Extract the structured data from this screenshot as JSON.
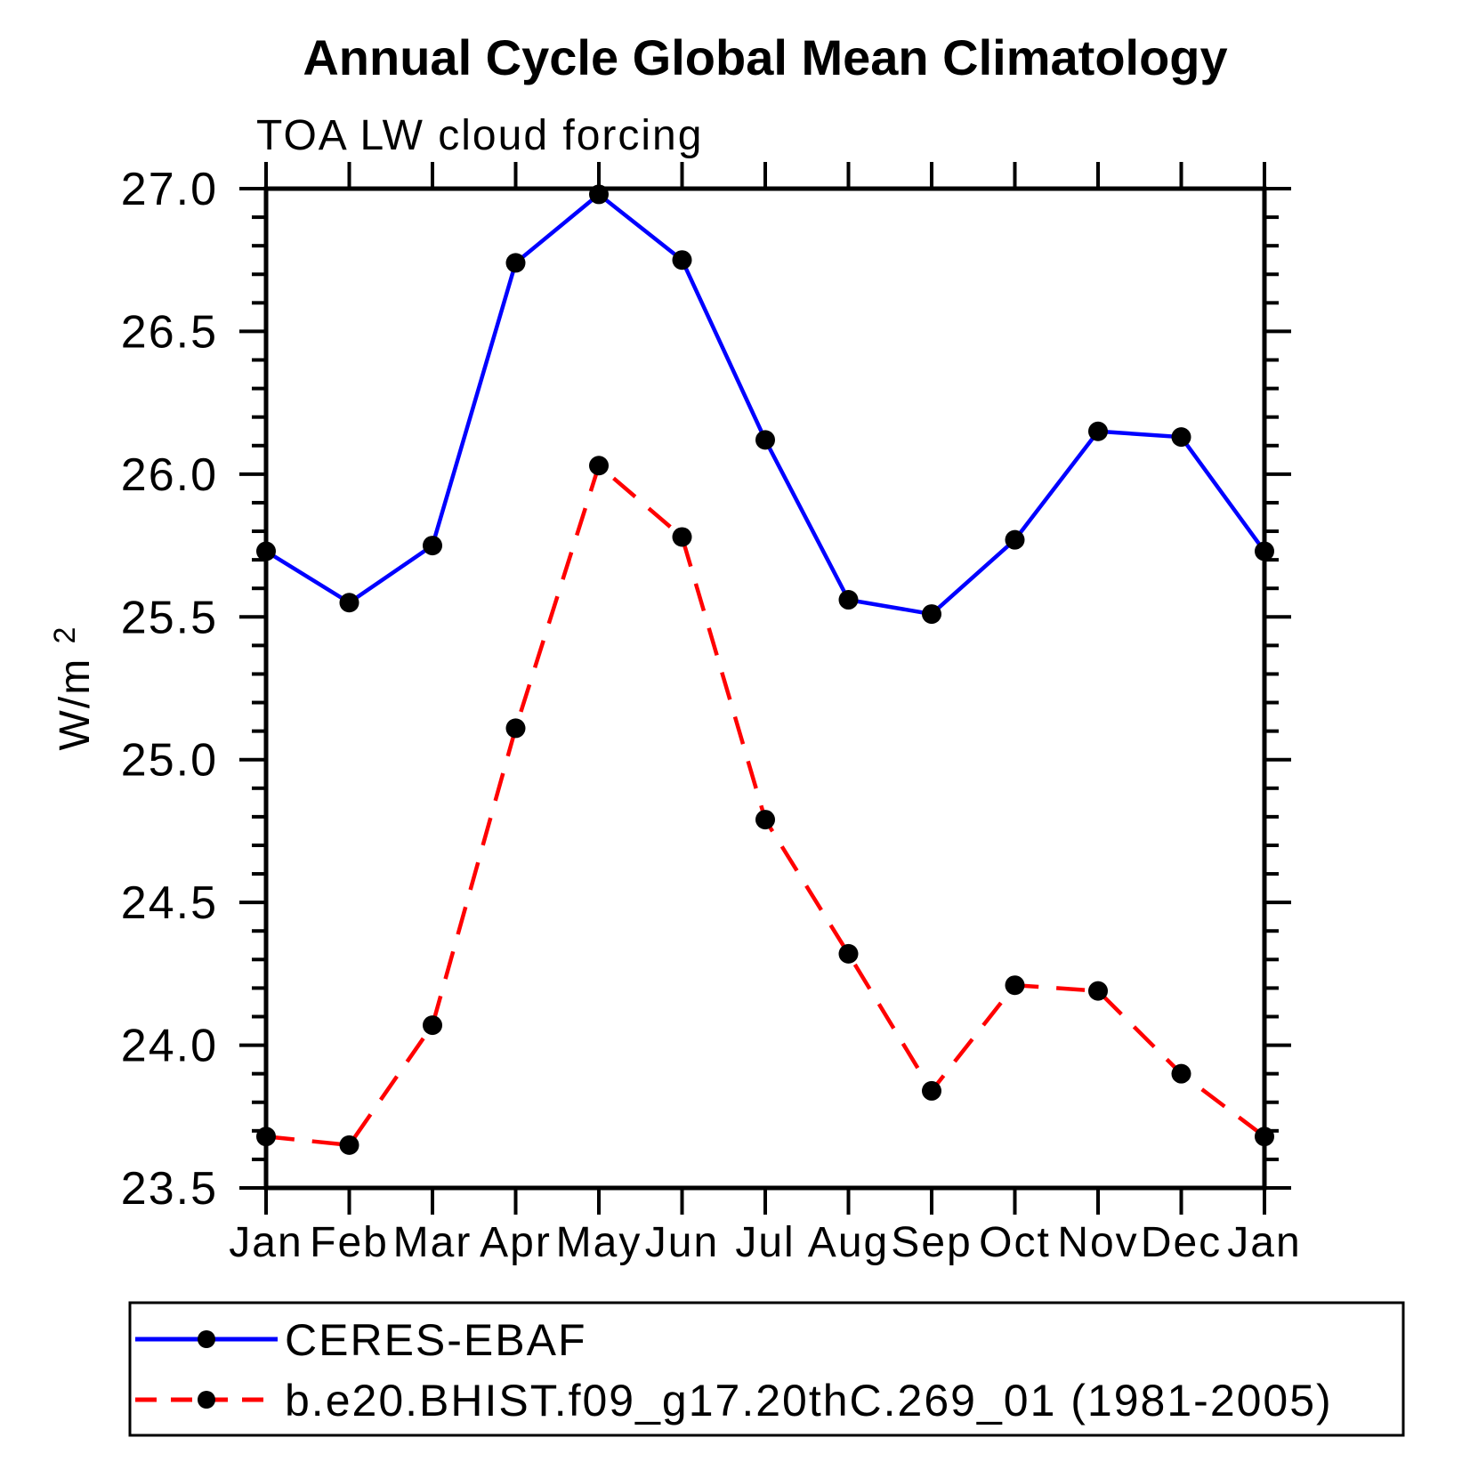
{
  "title": "Annual Cycle Global Mean Climatology",
  "subtitle": "TOA LW cloud forcing",
  "y_axis": {
    "label_base": "W/m",
    "label_exponent": "2",
    "tick_labels": [
      "27.0",
      "26.5",
      "26.0",
      "25.5",
      "25.0",
      "24.5",
      "24.0",
      "23.5"
    ]
  },
  "chart_data": {
    "type": "line",
    "categories": [
      "Jan",
      "Feb",
      "Mar",
      "Apr",
      "May",
      "Jun",
      "Jul",
      "Aug",
      "Sep",
      "Oct",
      "Nov",
      "Dec",
      "Jan"
    ],
    "series": [
      {
        "name": "CERES-EBAF",
        "color": "#0000ff",
        "line_style": "solid",
        "marker": "filled-circle",
        "marker_color": "#000000",
        "values": [
          25.73,
          25.55,
          25.75,
          26.74,
          26.98,
          26.75,
          26.12,
          25.56,
          25.51,
          25.77,
          26.15,
          26.13,
          25.73
        ]
      },
      {
        "name": "b.e20.BHIST.f09_g17.20thC.269_01 (1981-2005)",
        "color": "#ff0000",
        "line_style": "dashed",
        "marker": "filled-circle",
        "marker_color": "#000000",
        "values": [
          23.68,
          23.65,
          24.07,
          25.11,
          26.03,
          25.78,
          24.79,
          24.32,
          23.84,
          24.21,
          24.19,
          23.9,
          23.68
        ]
      }
    ],
    "title": "Annual Cycle Global Mean Climatology",
    "subtitle": "TOA LW cloud forcing",
    "xlabel": "",
    "ylabel": "W/m2",
    "ylim": [
      23.5,
      27.0
    ],
    "ytick_step": 0.5,
    "yminor_step": 0.1,
    "grid": false,
    "legend_position": "bottom"
  },
  "colors": {
    "axis": "#000000",
    "text": "#000000",
    "background": "#ffffff"
  }
}
